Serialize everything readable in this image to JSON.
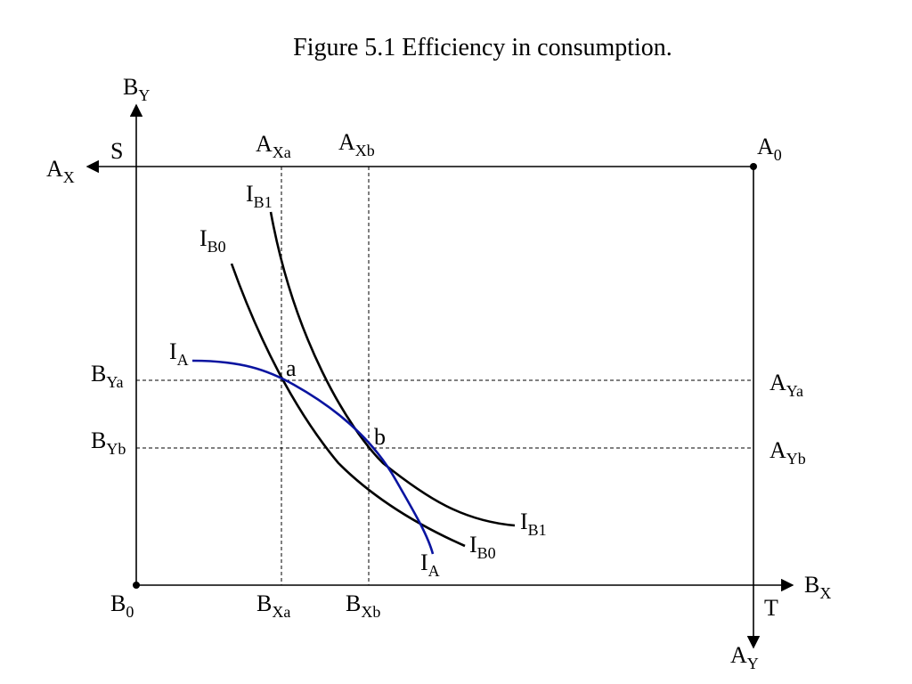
{
  "title": "Figure 5.1 Efficiency in consumption.",
  "colors": {
    "ia_curve": "#0a14a0",
    "ib_curves": "#000000",
    "axes": "#000000"
  },
  "corners": {
    "b_origin": {
      "main": "B",
      "sub": "0"
    },
    "a_origin": {
      "main": "A",
      "sub": "0"
    },
    "s": "S",
    "t": "T"
  },
  "axes": {
    "b_y": {
      "main": "B",
      "sub": "Y"
    },
    "b_x": {
      "main": "B",
      "sub": "X"
    },
    "a_x": {
      "main": "A",
      "sub": "X"
    },
    "a_y": {
      "main": "A",
      "sub": "Y"
    }
  },
  "levels": {
    "a_xa": {
      "main": "A",
      "sub": "Xa"
    },
    "a_xb": {
      "main": "A",
      "sub": "Xb"
    },
    "b_xa": {
      "main": "B",
      "sub": "Xa"
    },
    "b_xb": {
      "main": "B",
      "sub": "Xb"
    },
    "b_ya": {
      "main": "B",
      "sub": "Ya"
    },
    "b_yb": {
      "main": "B",
      "sub": "Yb"
    },
    "a_ya": {
      "main": "A",
      "sub": "Ya"
    },
    "a_yb": {
      "main": "A",
      "sub": "Yb"
    }
  },
  "curves": {
    "ib1_top": {
      "main": "I",
      "sub": "B1"
    },
    "ib1_end": {
      "main": "I",
      "sub": "B1"
    },
    "ib0_top": {
      "main": "I",
      "sub": "B0"
    },
    "ib0_end": {
      "main": "I",
      "sub": "B0"
    },
    "ia_top": {
      "main": "I",
      "sub": "A"
    },
    "ia_end": {
      "main": "I",
      "sub": "A"
    }
  },
  "points": {
    "a": "a",
    "b": "b"
  }
}
